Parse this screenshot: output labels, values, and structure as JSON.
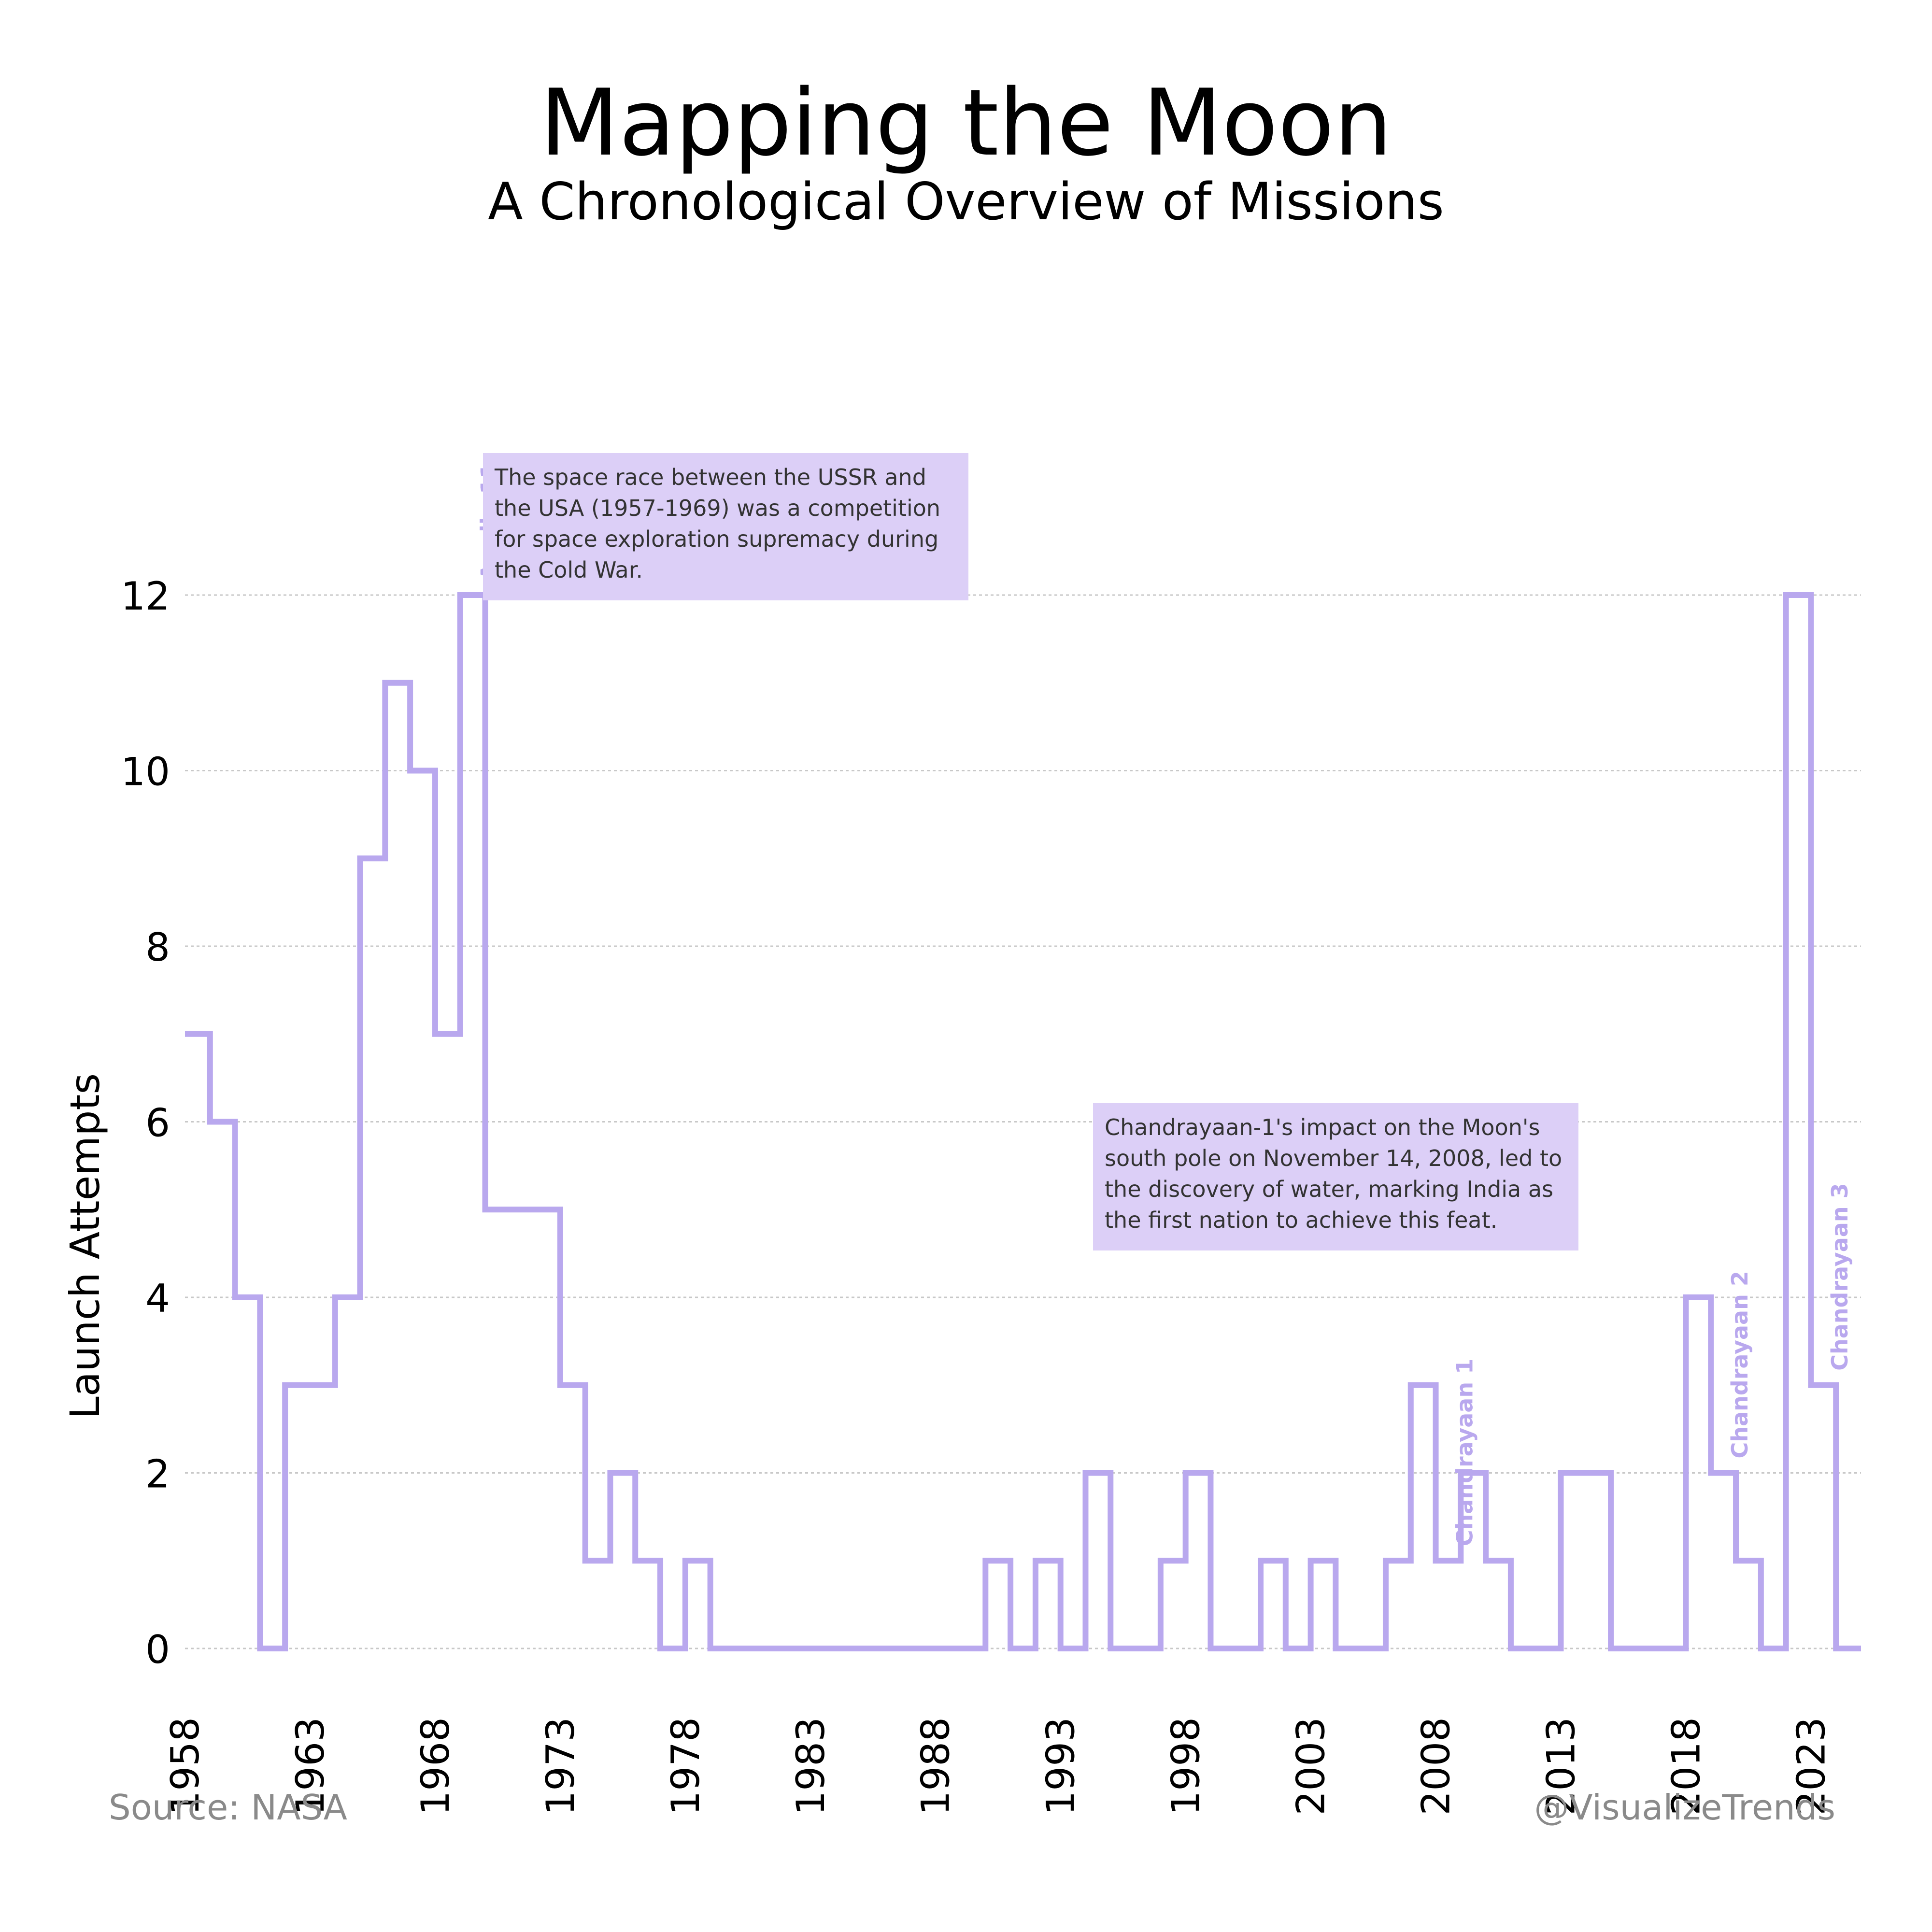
{
  "title": "Mapping the Moon",
  "subtitle": "A Chronological Overview of Missions",
  "source": "Source: NASA",
  "handle": "@VisualizeTrends",
  "annotations": [
    "The space race between the USSR and the USA (1957-1969) was a competition for space exploration supremacy during the Cold War.",
    "Chandrayaan-1's impact on the Moon's south pole on November 14, 2008, led to the discovery of water, marking India as the first nation to achieve this feat."
  ],
  "chart_data": {
    "type": "line",
    "step": true,
    "title": "Mapping the Moon",
    "subtitle": "A Chronological Overview of Missions",
    "xlabel": "",
    "ylabel": "Launch Attempts",
    "xlim": [
      1958,
      2025
    ],
    "ylim": [
      0,
      13
    ],
    "yticks": [
      0,
      2,
      4,
      6,
      8,
      10,
      12
    ],
    "xticks": [
      1958,
      1963,
      1968,
      1973,
      1978,
      1983,
      1988,
      1993,
      1998,
      2003,
      2008,
      2013,
      2018,
      2023
    ],
    "grid": true,
    "color": "#b9a8ee",
    "x": [
      1958,
      1959,
      1960,
      1961,
      1962,
      1963,
      1964,
      1965,
      1966,
      1967,
      1968,
      1969,
      1970,
      1971,
      1972,
      1973,
      1974,
      1975,
      1976,
      1977,
      1978,
      1979,
      1980,
      1981,
      1982,
      1983,
      1984,
      1985,
      1986,
      1987,
      1988,
      1989,
      1990,
      1991,
      1992,
      1993,
      1994,
      1995,
      1996,
      1997,
      1998,
      1999,
      2000,
      2001,
      2002,
      2003,
      2004,
      2005,
      2006,
      2007,
      2008,
      2009,
      2010,
      2011,
      2012,
      2013,
      2014,
      2015,
      2016,
      2017,
      2018,
      2019,
      2020,
      2021,
      2022,
      2023,
      2024
    ],
    "values": [
      7,
      6,
      4,
      0,
      3,
      3,
      4,
      9,
      11,
      10,
      7,
      12,
      5,
      5,
      5,
      3,
      1,
      2,
      1,
      0,
      1,
      0,
      0,
      0,
      0,
      0,
      0,
      0,
      0,
      0,
      0,
      0,
      1,
      0,
      1,
      0,
      2,
      0,
      0,
      1,
      2,
      0,
      0,
      1,
      0,
      1,
      0,
      0,
      1,
      3,
      1,
      2,
      1,
      0,
      0,
      2,
      2,
      0,
      0,
      0,
      4,
      2,
      1,
      0,
      12,
      3,
      0
    ],
    "event_labels": [
      {
        "text": "Apollo 11",
        "x": 1969
      },
      {
        "text": "Chandrayaan 1",
        "x": 2008
      },
      {
        "text": "Chandrayaan 2",
        "x": 2019
      },
      {
        "text": "Chandrayaan 3",
        "x": 2023
      }
    ]
  }
}
